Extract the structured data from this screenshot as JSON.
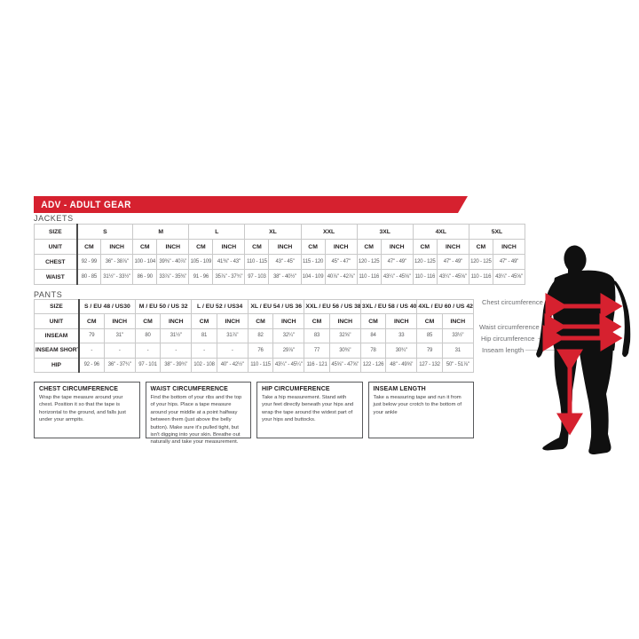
{
  "colors": {
    "accent_red": "#d6212f",
    "silhouette_black": "#101010",
    "border_dark": "#4a4a4a",
    "border_light": "#c9c9c9",
    "text_gray": "#58595b"
  },
  "banner": {
    "title": "ADV - ADULT GEAR"
  },
  "jackets": {
    "label": "JACKETS",
    "corner_label": "SIZE",
    "unit_label": "UNIT",
    "unit_cols": [
      "CM",
      "INCH"
    ],
    "sizes": [
      "S",
      "M",
      "L",
      "XL",
      "XXL",
      "3XL",
      "4XL",
      "5XL"
    ],
    "rows": [
      {
        "label": "CHEST",
        "values": [
          [
            "92 - 99",
            "36\" - 38⅞\""
          ],
          [
            "100 - 104",
            "39⅜\" - 40⅞\""
          ],
          [
            "105 - 109",
            "41⅜\" - 43\""
          ],
          [
            "110 - 115",
            "43\" - 45\""
          ],
          [
            "115 - 120",
            "45\" - 47\""
          ],
          [
            "120 - 125",
            "47\" - 49\""
          ],
          [
            "120 - 125",
            "47\" - 49\""
          ],
          [
            "120 - 125",
            "47\" - 49\""
          ]
        ]
      },
      {
        "label": "WAIST",
        "values": [
          [
            "80 - 85",
            "31½\" - 33½\""
          ],
          [
            "86 - 90",
            "33⅞\" - 35⅜\""
          ],
          [
            "91 - 96",
            "35⅞\" - 37¾\""
          ],
          [
            "97 - 103",
            "38\" - 40½\""
          ],
          [
            "104 - 109",
            "40⅞\" - 42⅞\""
          ],
          [
            "110 - 116",
            "43¼\" - 45⅝\""
          ],
          [
            "110 - 116",
            "43¼\" - 45⅝\""
          ],
          [
            "110 - 116",
            "43¼\" - 45⅝\""
          ]
        ]
      }
    ]
  },
  "pants": {
    "label": "PANTS",
    "corner_label": "SIZE",
    "unit_label": "UNIT",
    "unit_cols": [
      "CM",
      "INCH"
    ],
    "sizes": [
      "S / EU 48 / US30",
      "M / EU 50 / US 32",
      "L / EU 52 / US34",
      "XL / EU 54 / US 36",
      "XXL / EU 56 / US 38",
      "3XL / EU 58 / US 40",
      "4XL / EU 60 / US 42"
    ],
    "rows": [
      {
        "label": "INSEAM",
        "values": [
          [
            "79",
            "31\""
          ],
          [
            "80",
            "31½\""
          ],
          [
            "81",
            "31⅞\""
          ],
          [
            "82",
            "32¼\""
          ],
          [
            "83",
            "32⅝\""
          ],
          [
            "84",
            "33"
          ],
          [
            "85",
            "33½\""
          ]
        ]
      },
      {
        "label": "INSEAM SHORT",
        "values": [
          [
            "-",
            "-"
          ],
          [
            "-",
            "-"
          ],
          [
            "-",
            "-"
          ],
          [
            "76",
            "29⅞\""
          ],
          [
            "77",
            "30⅜\""
          ],
          [
            "78",
            "30¾\""
          ],
          [
            "79",
            "31"
          ]
        ]
      },
      {
        "label": "HIP",
        "values": [
          [
            "92 - 96",
            "36\" - 37¾\""
          ],
          [
            "97 - 101",
            "38\" - 39¾\""
          ],
          [
            "102 - 108",
            "40\" - 42½\""
          ],
          [
            "110 - 115",
            "43¼\" - 45¼\""
          ],
          [
            "116 - 121",
            "45⅝\" - 47⅝\""
          ],
          [
            "122 - 126",
            "48\" - 49⅝\""
          ],
          [
            "127 - 132",
            "50\" - 51⅞\""
          ]
        ]
      }
    ]
  },
  "instructions": [
    {
      "title": "CHEST CIRCUMFERENCE",
      "body": "Wrap the tape measure around your chest. Position it so that the tape is horizontal to the ground, and falls just under your armpits."
    },
    {
      "title": "WAIST CIRCUMFERENCE",
      "body": "Find the bottom of your ribs and the top of your hips. Place a tape measure around your middle at a point halfway between them (just above the belly button). Make sure it's pulled tight, but isn't digging into your skin. Breathe out naturally and take your measurement."
    },
    {
      "title": "HIP CIRCUMFERENCE",
      "body": "Take a hip measurement. Stand with your feet directly beneath your hips and wrap the tape around the widest part of your hips and buttocks."
    },
    {
      "title": "INSEAM LENGTH",
      "body": "Take a measuring tape and run it from just below your crotch to the bottom of your ankle"
    }
  ],
  "figure": {
    "labels": [
      "Chest circumference",
      "Waist circumference",
      "Hip circumference",
      "Inseam length"
    ]
  }
}
